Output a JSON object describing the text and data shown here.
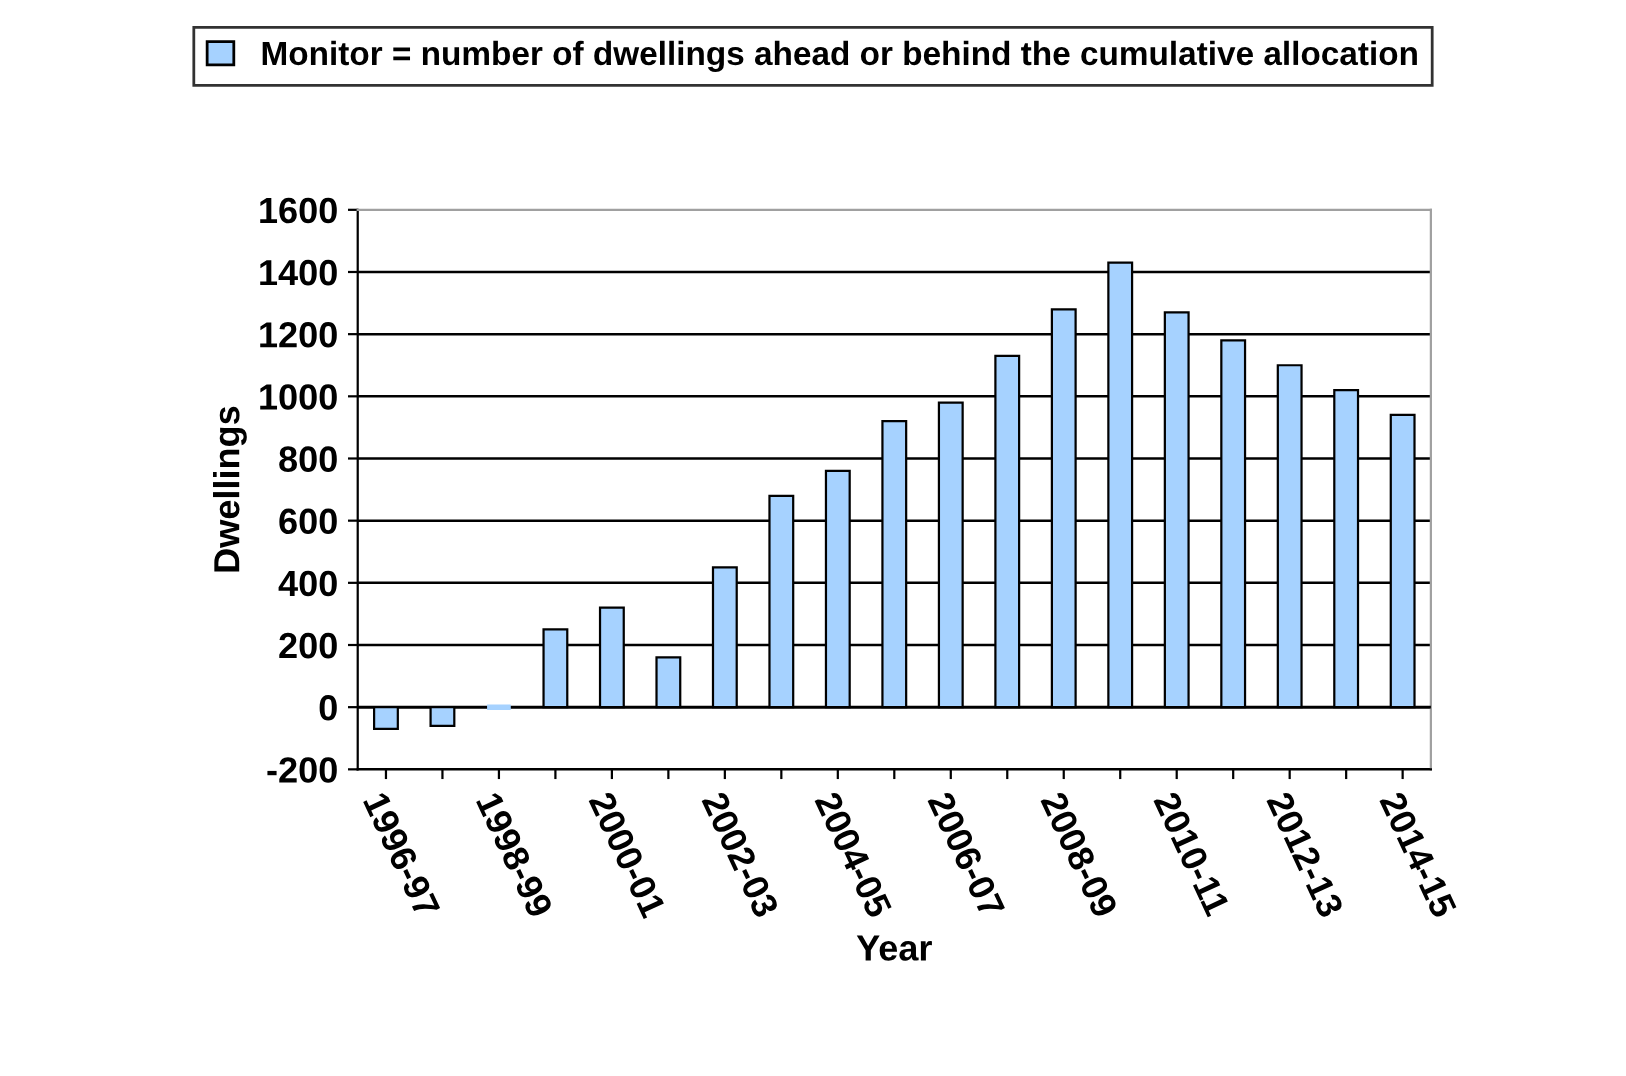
{
  "chart_data": {
    "type": "bar",
    "xlabel": "Year",
    "ylabel": "Dwellings",
    "categories": [
      "1996-97",
      null,
      "1998-99",
      null,
      "2000-01",
      null,
      "2002-03",
      null,
      "2004-05",
      null,
      "2006-07",
      null,
      "2008-09",
      null,
      "2010-11",
      null,
      "2012-13",
      null,
      "2014-15"
    ],
    "series": [
      {
        "name": "Monitor = number of dwellings ahead or behind the cumulative allocation",
        "color": "#a6d2ff",
        "values": [
          -70,
          -60,
          0,
          250,
          320,
          160,
          450,
          680,
          760,
          920,
          980,
          1130,
          1280,
          1430,
          1270,
          1180,
          1100,
          1020,
          940
        ]
      }
    ],
    "ylim": [
      -200,
      1600
    ],
    "yticks": [
      -200,
      0,
      200,
      400,
      600,
      800,
      1000,
      1200,
      1400,
      1600
    ],
    "grid": "y",
    "legend": "top"
  }
}
